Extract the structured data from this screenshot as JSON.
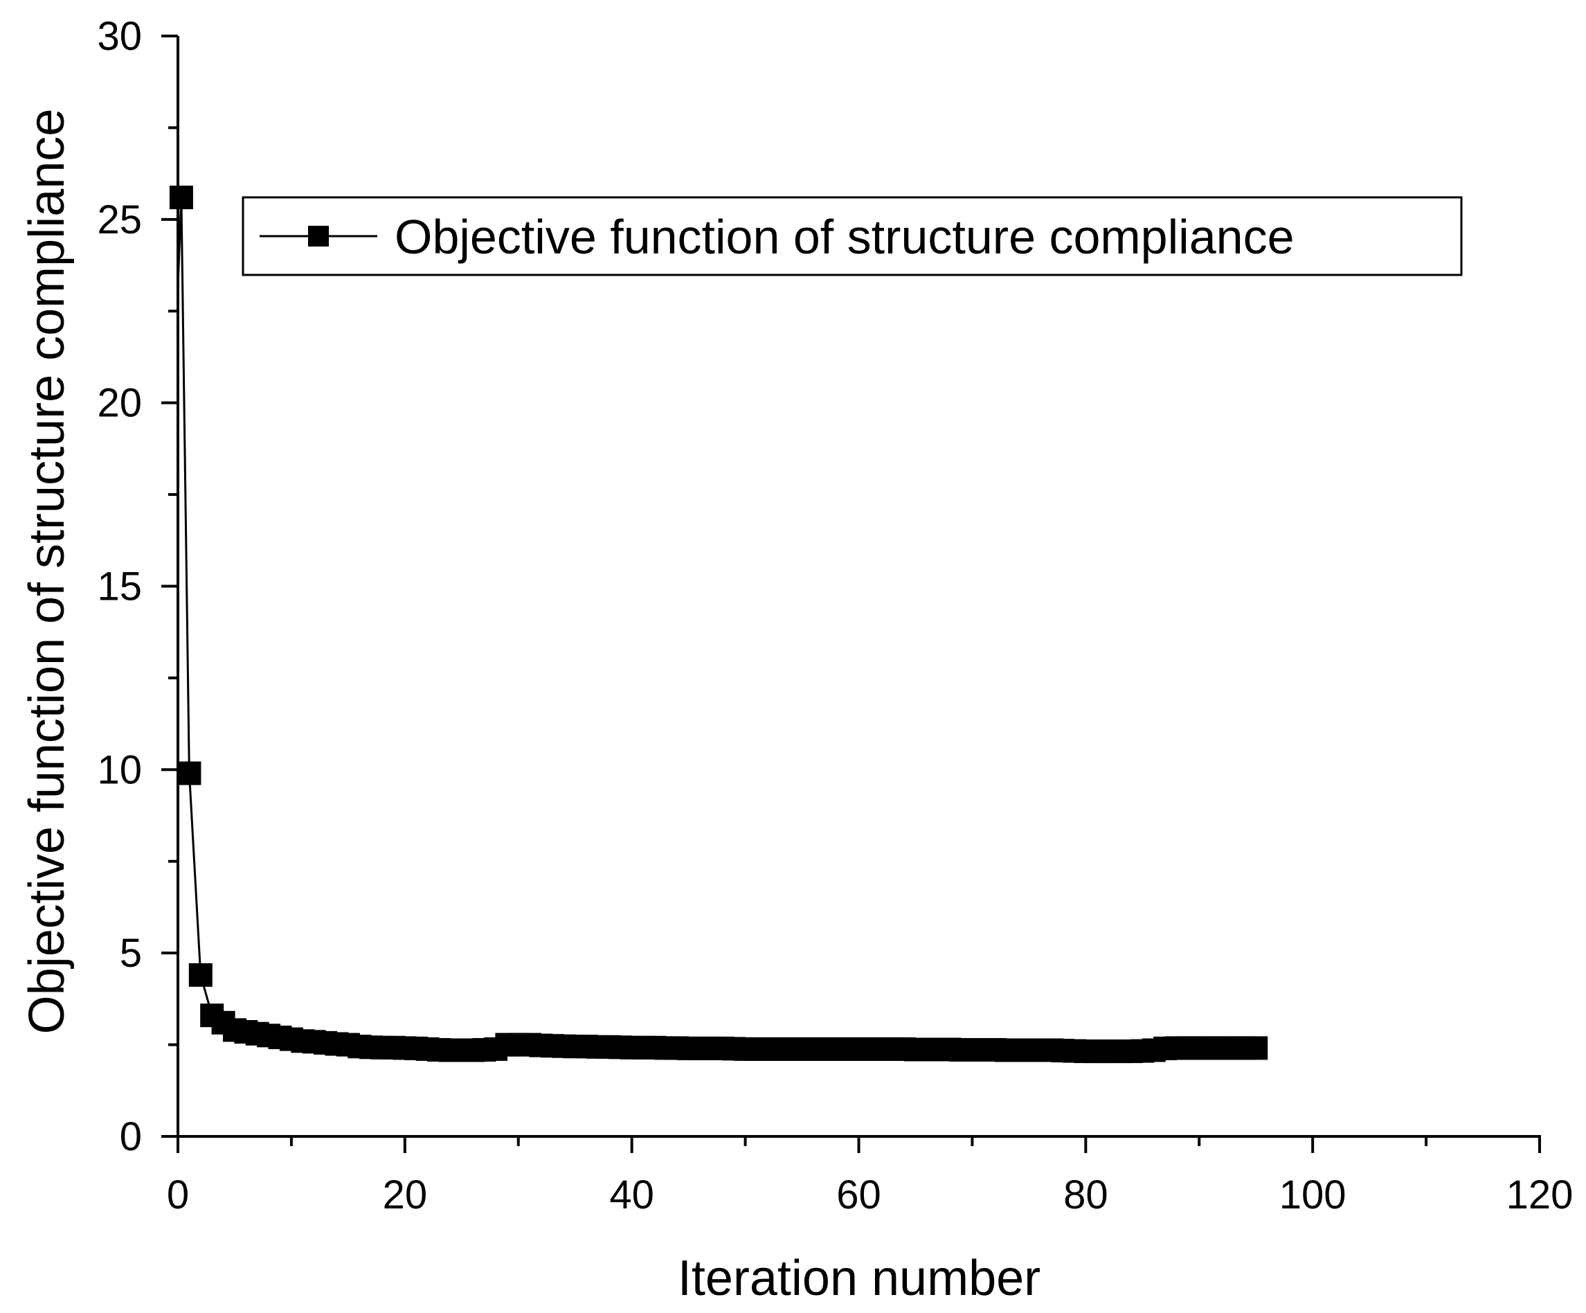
{
  "chart_data": {
    "type": "line",
    "title": "",
    "xlabel": "Iteration number",
    "ylabel": "Objective function of structure compliance",
    "xlim": [
      0,
      120
    ],
    "ylim": [
      0,
      30
    ],
    "xticks": [
      "0",
      "20",
      "40",
      "60",
      "80",
      "100",
      "120"
    ],
    "yticks": [
      "0",
      "5",
      "10",
      "15",
      "20",
      "25",
      "30"
    ],
    "grid": false,
    "legend_position": "top-right",
    "marker": "square",
    "series": [
      {
        "name": "Objective function of structure compliance",
        "color": "#000000",
        "x": [
          0.3,
          1,
          2,
          3,
          4,
          5,
          6,
          7,
          8,
          9,
          10,
          11,
          12,
          13,
          14,
          15,
          16,
          17,
          18,
          19,
          20,
          21,
          22,
          23,
          24,
          25,
          26,
          27,
          28,
          29,
          30,
          31,
          32,
          33,
          34,
          35,
          36,
          37,
          38,
          39,
          40,
          41,
          42,
          43,
          44,
          45,
          46,
          47,
          48,
          49,
          50,
          51,
          52,
          53,
          54,
          55,
          56,
          57,
          58,
          59,
          60,
          61,
          62,
          63,
          64,
          65,
          66,
          67,
          68,
          69,
          70,
          71,
          72,
          73,
          74,
          75,
          76,
          77,
          78,
          79,
          80,
          81,
          82,
          83,
          84,
          85,
          86,
          87,
          88,
          89,
          90,
          91,
          92,
          93,
          94,
          95
        ],
        "y": [
          25.6,
          9.9,
          4.4,
          3.3,
          3.1,
          2.9,
          2.85,
          2.8,
          2.75,
          2.7,
          2.65,
          2.6,
          2.58,
          2.55,
          2.52,
          2.5,
          2.45,
          2.43,
          2.42,
          2.42,
          2.41,
          2.4,
          2.38,
          2.36,
          2.35,
          2.35,
          2.35,
          2.36,
          2.38,
          2.5,
          2.5,
          2.5,
          2.48,
          2.47,
          2.46,
          2.45,
          2.45,
          2.44,
          2.44,
          2.43,
          2.42,
          2.42,
          2.42,
          2.41,
          2.41,
          2.4,
          2.4,
          2.4,
          2.4,
          2.39,
          2.38,
          2.38,
          2.38,
          2.38,
          2.38,
          2.38,
          2.38,
          2.38,
          2.38,
          2.38,
          2.38,
          2.38,
          2.38,
          2.38,
          2.38,
          2.37,
          2.37,
          2.37,
          2.37,
          2.36,
          2.36,
          2.36,
          2.36,
          2.35,
          2.35,
          2.35,
          2.35,
          2.35,
          2.34,
          2.33,
          2.32,
          2.32,
          2.32,
          2.32,
          2.32,
          2.33,
          2.35,
          2.4,
          2.41,
          2.41,
          2.41,
          2.41,
          2.41,
          2.41,
          2.41,
          2.41
        ]
      }
    ]
  }
}
